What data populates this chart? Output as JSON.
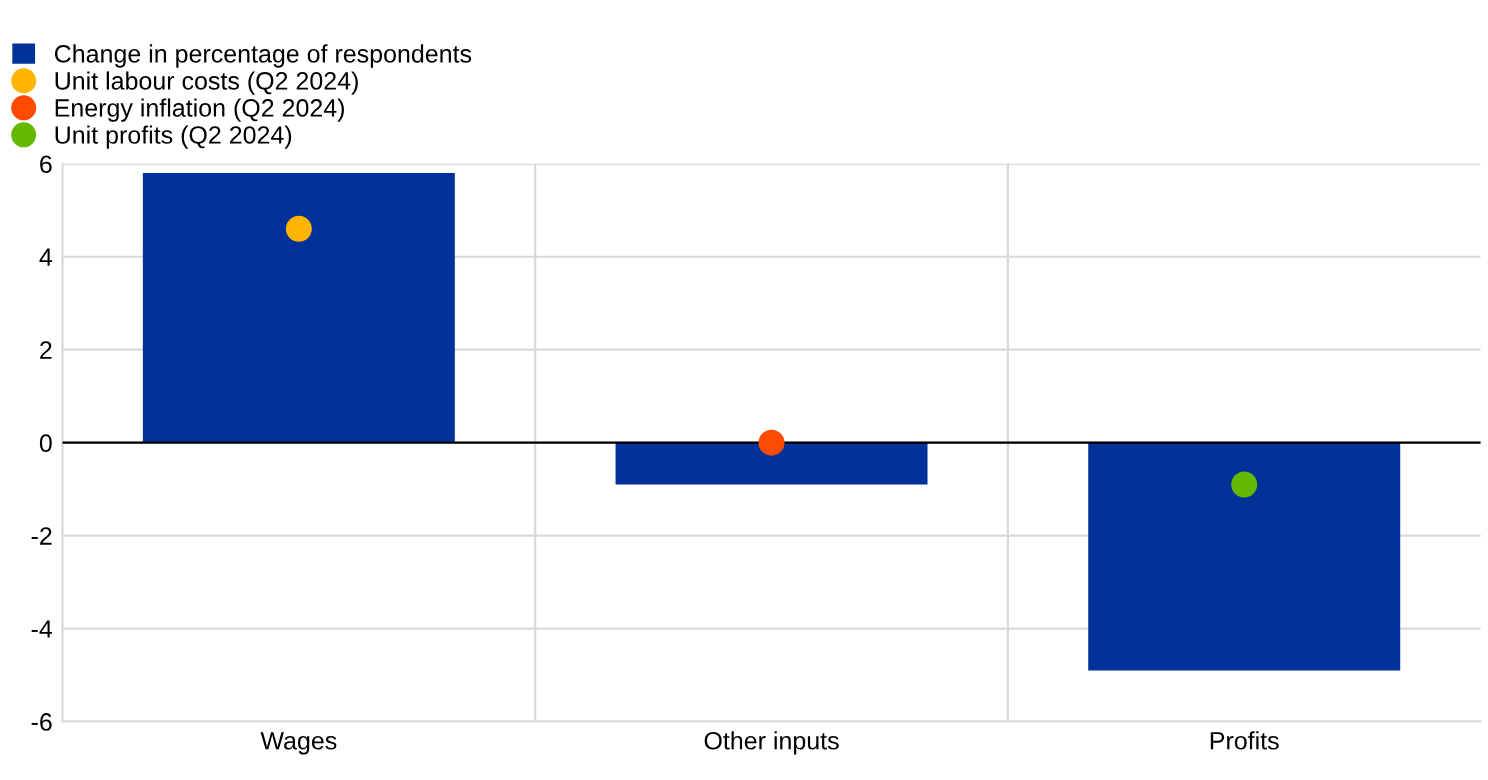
{
  "chart_data": {
    "type": "bar",
    "categories": [
      "Wages",
      "Other inputs",
      "Profits"
    ],
    "series": [
      {
        "name": "Change in percentage of respondents",
        "color": "#003299",
        "values": [
          5.8,
          -0.9,
          -4.9
        ]
      },
      {
        "name": "Unit labour costs (Q2 2024)",
        "type": "scatter",
        "color": "#ffb400",
        "x": [
          "Wages"
        ],
        "values": [
          4.6
        ]
      },
      {
        "name": "Energy inflation (Q2 2024)",
        "type": "scatter",
        "color": "#ff4b00",
        "x": [
          "Other inputs"
        ],
        "values": [
          0.0
        ]
      },
      {
        "name": "Unit profits (Q2 2024)",
        "type": "scatter",
        "color": "#65b800",
        "x": [
          "Profits"
        ],
        "values": [
          -0.9
        ]
      }
    ],
    "ylim": [
      -6,
      6
    ],
    "yticks": [
      -6,
      -4,
      -2,
      0,
      2,
      4,
      6
    ],
    "grid": true,
    "legend": "top left",
    "marker": "circle",
    "ref_lines": [
      {
        "axis": "y",
        "value": 0,
        "color": "#000000"
      }
    ]
  }
}
